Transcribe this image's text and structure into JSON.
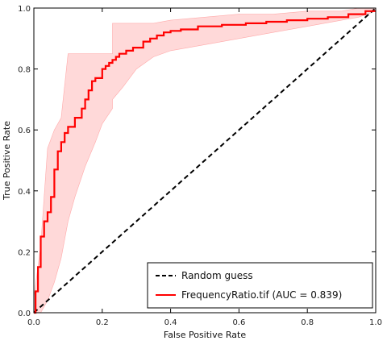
{
  "chart_data": {
    "type": "line",
    "title": "",
    "xlabel": "False Positive Rate",
    "ylabel": "True Positive Rate",
    "xlim": [
      0,
      1
    ],
    "ylim": [
      0,
      1
    ],
    "xticks": [
      "0.0",
      "0.2",
      "0.4",
      "0.6",
      "0.8",
      "1.0"
    ],
    "yticks": [
      "0.0",
      "0.2",
      "0.4",
      "0.6",
      "0.8",
      "1.0"
    ],
    "grid": false,
    "legend_position": "bottom-right",
    "series": [
      {
        "name": "Random guess",
        "style": "dashed",
        "color": "#000000",
        "x": [
          0,
          1
        ],
        "y": [
          0,
          1
        ]
      },
      {
        "name": "FrequencyRatio.tif (AUC = 0.839)",
        "style": "solid",
        "color": "#ff0000",
        "x": [
          0,
          0.005,
          0.005,
          0.012,
          0.012,
          0.02,
          0.02,
          0.03,
          0.03,
          0.04,
          0.04,
          0.05,
          0.05,
          0.06,
          0.06,
          0.07,
          0.07,
          0.08,
          0.08,
          0.09,
          0.09,
          0.1,
          0.1,
          0.12,
          0.12,
          0.14,
          0.14,
          0.15,
          0.15,
          0.16,
          0.16,
          0.17,
          0.17,
          0.18,
          0.18,
          0.2,
          0.2,
          0.21,
          0.21,
          0.22,
          0.22,
          0.23,
          0.23,
          0.24,
          0.24,
          0.25,
          0.25,
          0.27,
          0.27,
          0.29,
          0.29,
          0.32,
          0.32,
          0.34,
          0.34,
          0.36,
          0.36,
          0.38,
          0.38,
          0.4,
          0.4,
          0.43,
          0.43,
          0.48,
          0.48,
          0.55,
          0.55,
          0.62,
          0.62,
          0.68,
          0.68,
          0.74,
          0.74,
          0.8,
          0.8,
          0.86,
          0.86,
          0.92,
          0.92,
          0.97,
          0.97,
          1.0
        ],
        "y": [
          0,
          0,
          0.07,
          0.07,
          0.15,
          0.15,
          0.25,
          0.25,
          0.3,
          0.3,
          0.33,
          0.33,
          0.38,
          0.38,
          0.47,
          0.47,
          0.53,
          0.53,
          0.56,
          0.56,
          0.59,
          0.59,
          0.61,
          0.61,
          0.64,
          0.64,
          0.67,
          0.67,
          0.7,
          0.7,
          0.73,
          0.73,
          0.76,
          0.76,
          0.77,
          0.77,
          0.8,
          0.8,
          0.81,
          0.81,
          0.82,
          0.82,
          0.83,
          0.83,
          0.84,
          0.84,
          0.85,
          0.85,
          0.86,
          0.86,
          0.87,
          0.87,
          0.89,
          0.89,
          0.9,
          0.9,
          0.91,
          0.91,
          0.92,
          0.92,
          0.925,
          0.925,
          0.93,
          0.93,
          0.94,
          0.94,
          0.945,
          0.945,
          0.95,
          0.95,
          0.955,
          0.955,
          0.96,
          0.96,
          0.965,
          0.965,
          0.97,
          0.97,
          0.98,
          0.98,
          0.99,
          0.99
        ]
      }
    ],
    "confidence_band": {
      "color": "#ffcccc",
      "x": [
        0,
        0.02,
        0.04,
        0.06,
        0.08,
        0.1,
        0.12,
        0.15,
        0.18,
        0.2,
        0.23,
        0.23,
        0.26,
        0.3,
        0.35,
        0.4,
        0.5,
        0.6,
        0.7,
        0.8,
        0.9,
        0.95,
        1.0
      ],
      "lower": [
        0,
        0.0,
        0.04,
        0.1,
        0.18,
        0.3,
        0.38,
        0.48,
        0.56,
        0.62,
        0.67,
        0.7,
        0.74,
        0.8,
        0.84,
        0.86,
        0.88,
        0.9,
        0.92,
        0.94,
        0.96,
        0.97,
        0.99
      ],
      "upper": [
        0.05,
        0.22,
        0.54,
        0.6,
        0.64,
        0.85,
        0.85,
        0.85,
        0.85,
        0.85,
        0.85,
        0.95,
        0.95,
        0.95,
        0.95,
        0.96,
        0.97,
        0.98,
        0.98,
        0.99,
        0.99,
        1.0,
        1.0
      ]
    }
  }
}
